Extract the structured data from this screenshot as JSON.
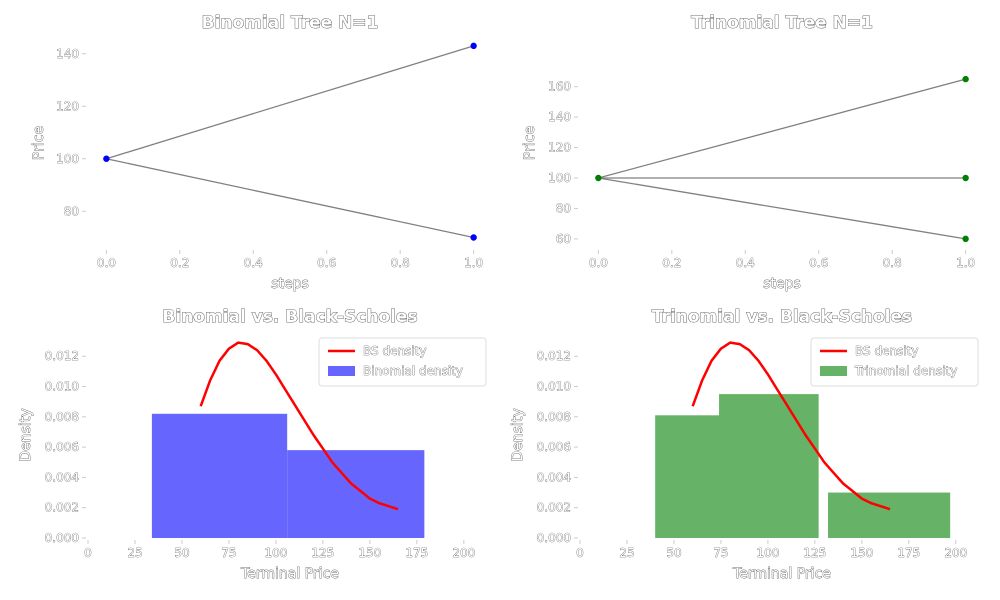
{
  "chart_data": [
    {
      "type": "line",
      "title": "Binomial Tree N=1",
      "xlabel": "steps",
      "ylabel": "Price",
      "xlim": [
        -0.05,
        1.05
      ],
      "ylim": [
        66,
        146
      ],
      "xticks": [
        0.0,
        0.2,
        0.4,
        0.6,
        0.8,
        1.0
      ],
      "xtick_labels": [
        "0.0",
        "0.2",
        "0.4",
        "0.6",
        "0.8",
        "1.0"
      ],
      "yticks": [
        80,
        100,
        120,
        140
      ],
      "ytick_labels": [
        "80",
        "100",
        "120",
        "140"
      ],
      "node_color": "#0000ff",
      "edge_color": "#808080",
      "nodes": [
        {
          "x": 0,
          "y": 100
        },
        {
          "x": 1,
          "y": 143
        },
        {
          "x": 1,
          "y": 70
        }
      ],
      "edges": [
        [
          0,
          1
        ],
        [
          0,
          2
        ]
      ]
    },
    {
      "type": "line",
      "title": "Trinomial Tree N=1",
      "xlabel": "steps",
      "ylabel": "Price",
      "xlim": [
        -0.05,
        1.05
      ],
      "ylim": [
        54,
        192
      ],
      "xticks": [
        0.0,
        0.2,
        0.4,
        0.6,
        0.8,
        1.0
      ],
      "xtick_labels": [
        "0.0",
        "0.2",
        "0.4",
        "0.6",
        "0.8",
        "1.0"
      ],
      "yticks": [
        60,
        80,
        100,
        120,
        140,
        160
      ],
      "ytick_labels": [
        "60",
        "80",
        "100",
        "120",
        "140",
        "160"
      ],
      "node_color": "#008000",
      "edge_color": "#808080",
      "nodes": [
        {
          "x": 0,
          "y": 100
        },
        {
          "x": 1,
          "y": 165
        },
        {
          "x": 1,
          "y": 100
        },
        {
          "x": 1,
          "y": 60
        }
      ],
      "edges": [
        [
          0,
          1
        ],
        [
          0,
          2
        ],
        [
          0,
          3
        ]
      ]
    },
    {
      "type": "bar",
      "title": "Binomial vs. Black-Scholes",
      "xlabel": "Terminal Price",
      "ylabel": "Density",
      "xlim": [
        0,
        215
      ],
      "ylim": [
        0,
        0.0136
      ],
      "xticks": [
        0,
        25,
        50,
        75,
        100,
        125,
        150,
        175,
        200
      ],
      "xtick_labels": [
        "0",
        "25",
        "50",
        "75",
        "100",
        "125",
        "150",
        "175",
        "200"
      ],
      "yticks": [
        0.0,
        0.002,
        0.004,
        0.006,
        0.008,
        0.01,
        0.012
      ],
      "ytick_labels": [
        "0.000",
        "0.002",
        "0.004",
        "0.006",
        "0.008",
        "0.010",
        "0.012"
      ],
      "legend_position": "top-right",
      "bars": [
        {
          "x0": 34,
          "x1": 106,
          "value": 0.0082
        },
        {
          "x0": 106,
          "x1": 179,
          "value": 0.0058
        }
      ],
      "bar_color": "#6666ff",
      "bar_series_name": "Binomial density",
      "curve_name": "BS density",
      "curve_color": "#ff0000",
      "curve": {
        "x": [
          60,
          65,
          70,
          75,
          80,
          85,
          90,
          95,
          100,
          105,
          110,
          115,
          120,
          125,
          130,
          135,
          140,
          145,
          150,
          155,
          160,
          165
        ],
        "y": [
          0.0087,
          0.0104,
          0.0117,
          0.0125,
          0.0129,
          0.0128,
          0.0124,
          0.0117,
          0.0108,
          0.0098,
          0.0088,
          0.0078,
          0.0068,
          0.0059,
          0.005,
          0.0043,
          0.0036,
          0.0031,
          0.0026,
          0.0023,
          0.0021,
          0.0019
        ]
      }
    },
    {
      "type": "bar",
      "title": "Trinomial vs. Black-Scholes",
      "xlabel": "Terminal Price",
      "ylabel": "Density",
      "xlim": [
        0,
        215
      ],
      "ylim": [
        0,
        0.0136
      ],
      "xticks": [
        0,
        25,
        50,
        75,
        100,
        125,
        150,
        175,
        200
      ],
      "xtick_labels": [
        "0",
        "25",
        "50",
        "75",
        "100",
        "125",
        "150",
        "175",
        "200"
      ],
      "yticks": [
        0.0,
        0.002,
        0.004,
        0.006,
        0.008,
        0.01,
        0.012
      ],
      "ytick_labels": [
        "0.000",
        "0.002",
        "0.004",
        "0.006",
        "0.008",
        "0.010",
        "0.012"
      ],
      "legend_position": "top-right",
      "bars": [
        {
          "x0": 40,
          "x1": 81,
          "value": 0.0081
        },
        {
          "x0": 74,
          "x1": 127,
          "value": 0.0095
        },
        {
          "x0": 132,
          "x1": 197,
          "value": 0.003
        }
      ],
      "bar_color": "#66b266",
      "bar_series_name": "Trinomial density",
      "curve_name": "BS density",
      "curve_color": "#ff0000",
      "curve": {
        "x": [
          60,
          65,
          70,
          75,
          80,
          85,
          90,
          95,
          100,
          105,
          110,
          115,
          120,
          125,
          130,
          135,
          140,
          145,
          150,
          155,
          160,
          165
        ],
        "y": [
          0.0087,
          0.0104,
          0.0117,
          0.0125,
          0.0129,
          0.0128,
          0.0124,
          0.0117,
          0.0108,
          0.0098,
          0.0088,
          0.0078,
          0.0068,
          0.0059,
          0.005,
          0.0043,
          0.0036,
          0.0031,
          0.0026,
          0.0023,
          0.0021,
          0.0019
        ]
      }
    }
  ]
}
